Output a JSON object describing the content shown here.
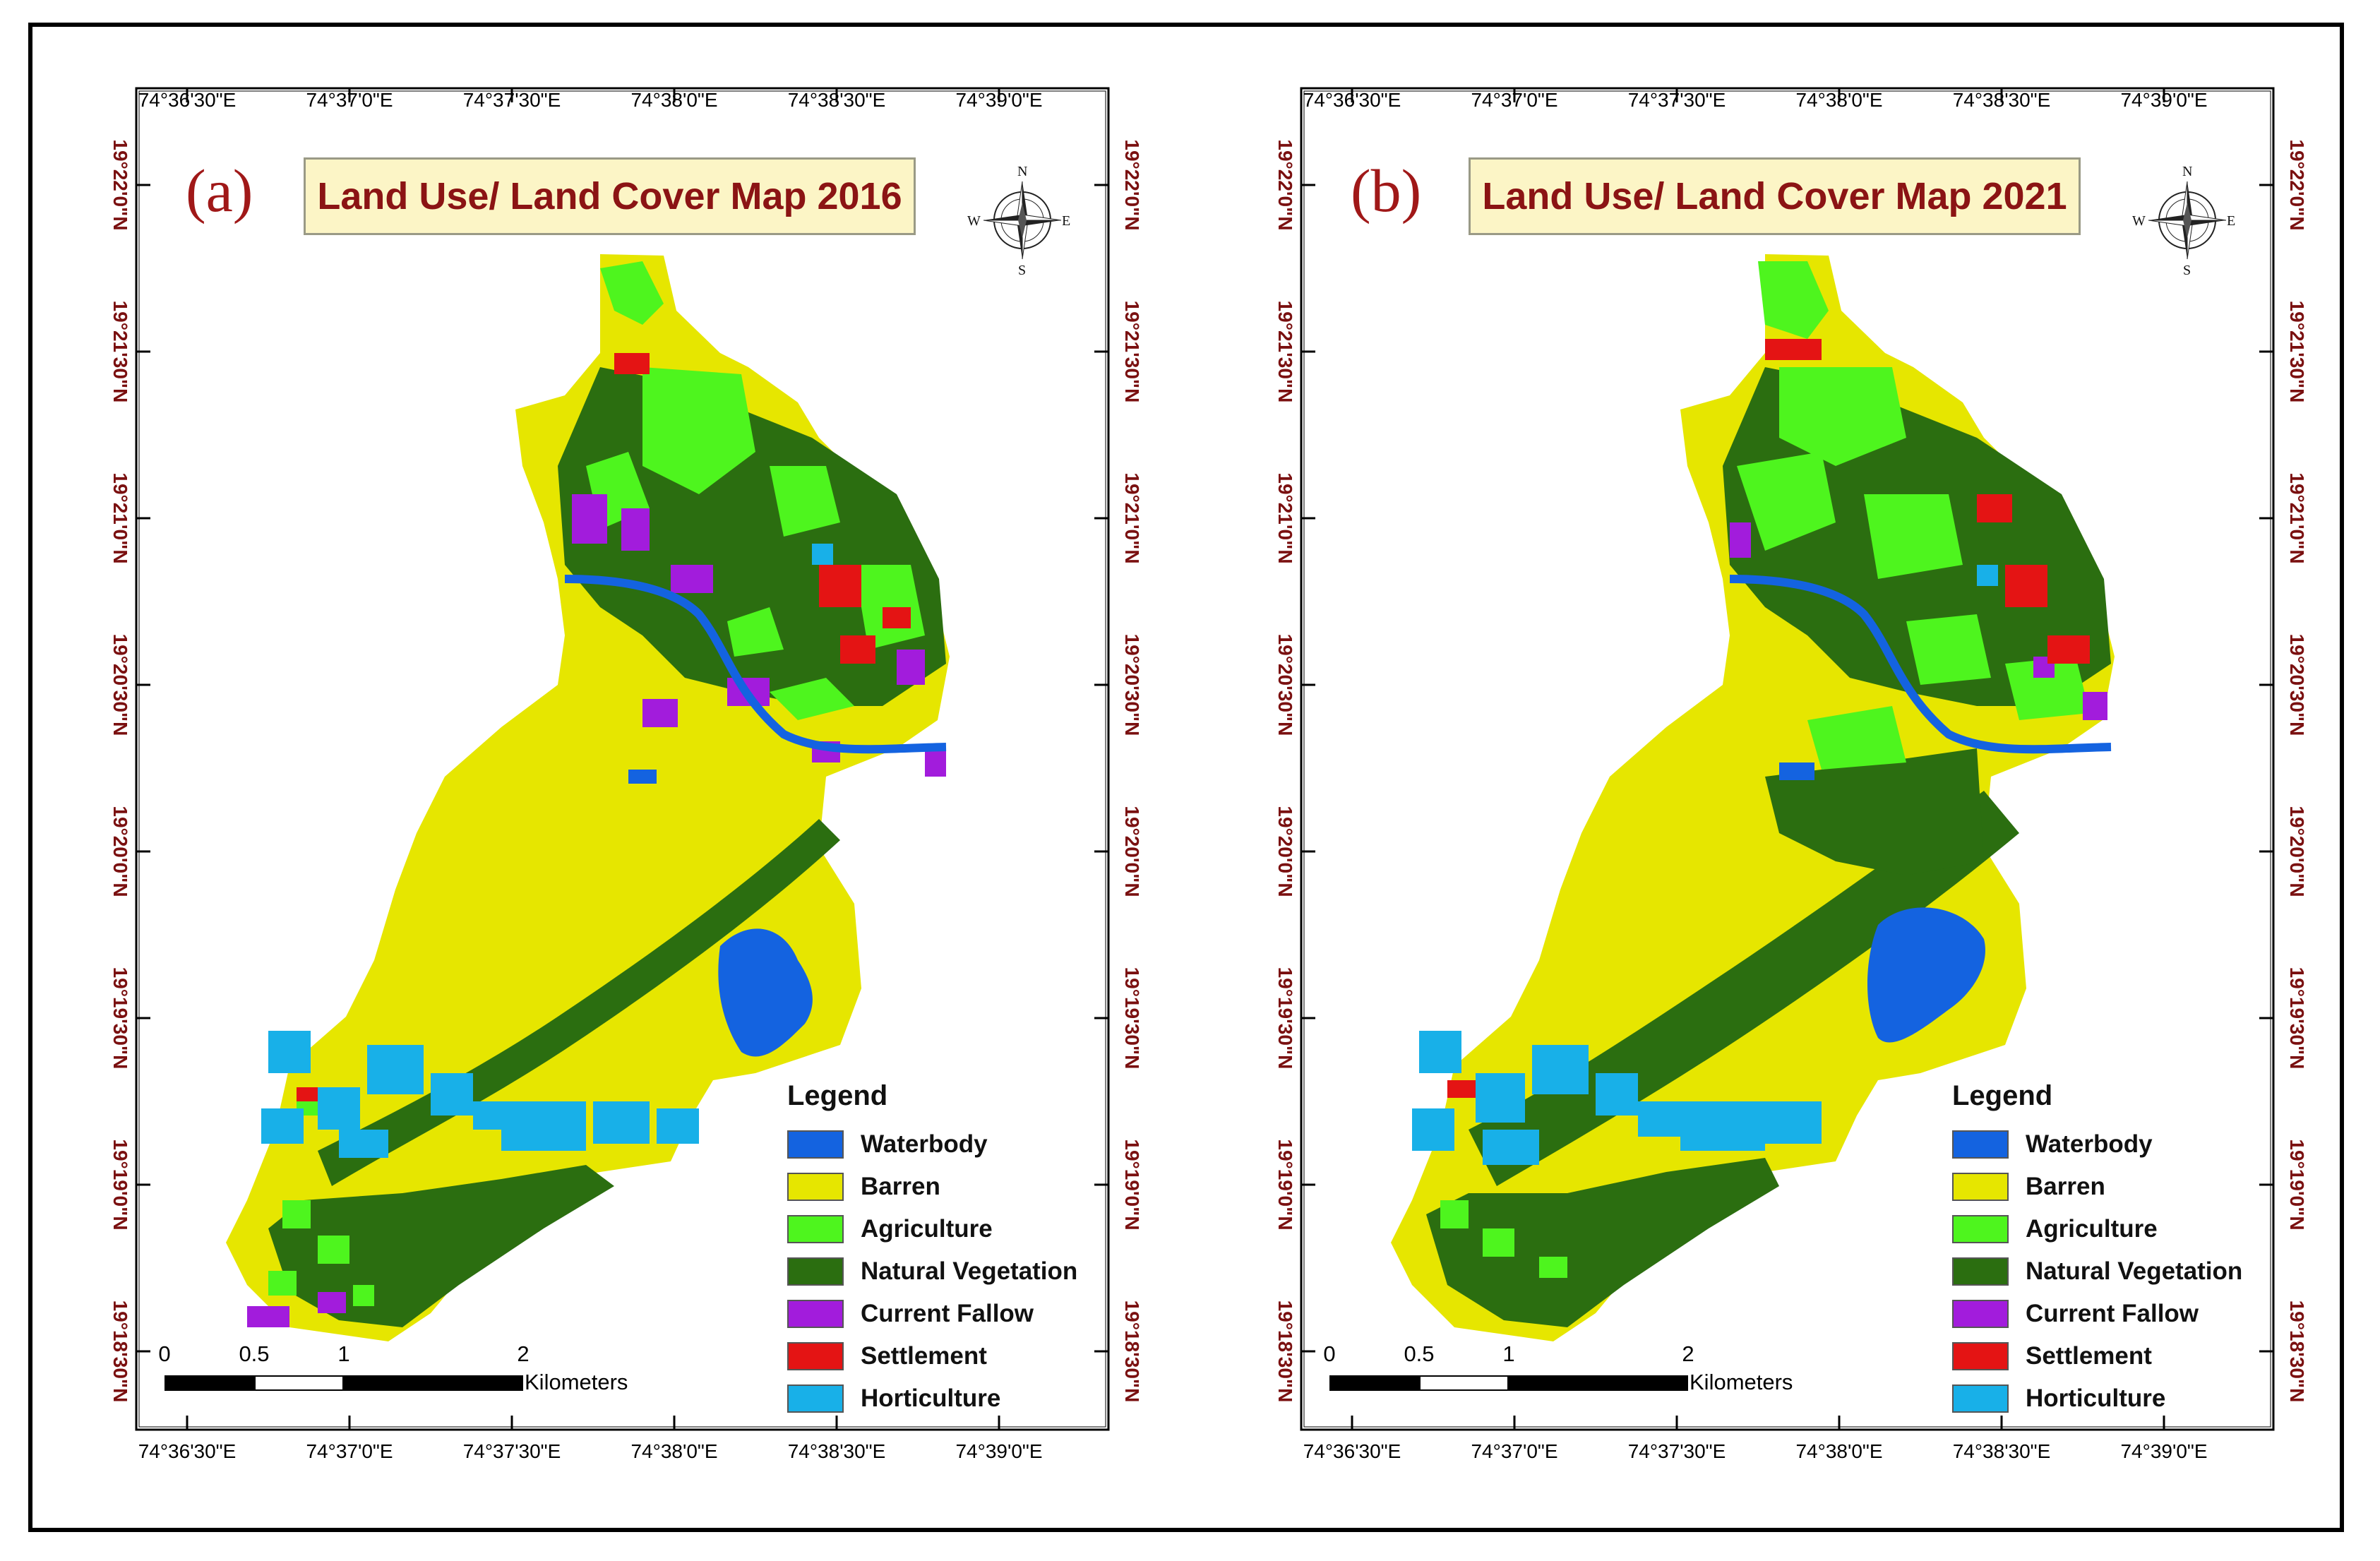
{
  "colors": {
    "waterbody": "#1463e0",
    "barren": "#e6e600",
    "agriculture": "#4ef51e",
    "natural_vegetation": "#2b6e10",
    "current_fallow": "#a21cdc",
    "settlement": "#e41414",
    "horticulture": "#18b0e8",
    "title_text": "#8b1414",
    "coord_text": "#7a1010"
  },
  "axes": {
    "longitudes": [
      "74°36'30\"E",
      "74°37'0\"E",
      "74°37'30\"E",
      "74°38'0\"E",
      "74°38'30\"E",
      "74°39'0\"E"
    ],
    "latitudes": [
      "19°22'0\"N",
      "19°21'30\"N",
      "19°21'0\"N",
      "19°20'30\"N",
      "19°20'0\"N",
      "19°19'30\"N",
      "19°19'0\"N",
      "19°18'30\"N"
    ]
  },
  "panels": [
    {
      "letter": "(a)",
      "title": "Land Use/ Land Cover Map 2016",
      "north": {
        "n": "N",
        "s": "S",
        "e": "E",
        "w": "W"
      },
      "scale": {
        "ticks": [
          "0",
          "0.5",
          "1",
          "2"
        ],
        "unit": "Kilometers"
      },
      "legend": {
        "title": "Legend",
        "items": [
          {
            "label": "Waterbody",
            "color": "#1463e0"
          },
          {
            "label": "Barren",
            "color": "#e6e600"
          },
          {
            "label": "Agriculture",
            "color": "#4ef51e"
          },
          {
            "label": "Natural Vegetation",
            "color": "#2b6e10"
          },
          {
            "label": "Current Fallow",
            "color": "#a21cdc"
          },
          {
            "label": "Settlement",
            "color": "#e41414"
          },
          {
            "label": "Horticulture",
            "color": "#18b0e8"
          }
        ]
      }
    },
    {
      "letter": "(b)",
      "title": "Land Use/ Land Cover Map 2021",
      "north": {
        "n": "N",
        "s": "S",
        "e": "E",
        "w": "W"
      },
      "scale": {
        "ticks": [
          "0",
          "0.5",
          "1",
          "2"
        ],
        "unit": "Kilometers"
      },
      "legend": {
        "title": "Legend",
        "items": [
          {
            "label": "Waterbody",
            "color": "#1463e0"
          },
          {
            "label": "Barren",
            "color": "#e6e600"
          },
          {
            "label": "Agriculture",
            "color": "#4ef51e"
          },
          {
            "label": "Natural Vegetation",
            "color": "#2b6e10"
          },
          {
            "label": "Current Fallow",
            "color": "#a21cdc"
          },
          {
            "label": "Settlement",
            "color": "#e41414"
          },
          {
            "label": "Horticulture",
            "color": "#18b0e8"
          }
        ]
      }
    }
  ]
}
